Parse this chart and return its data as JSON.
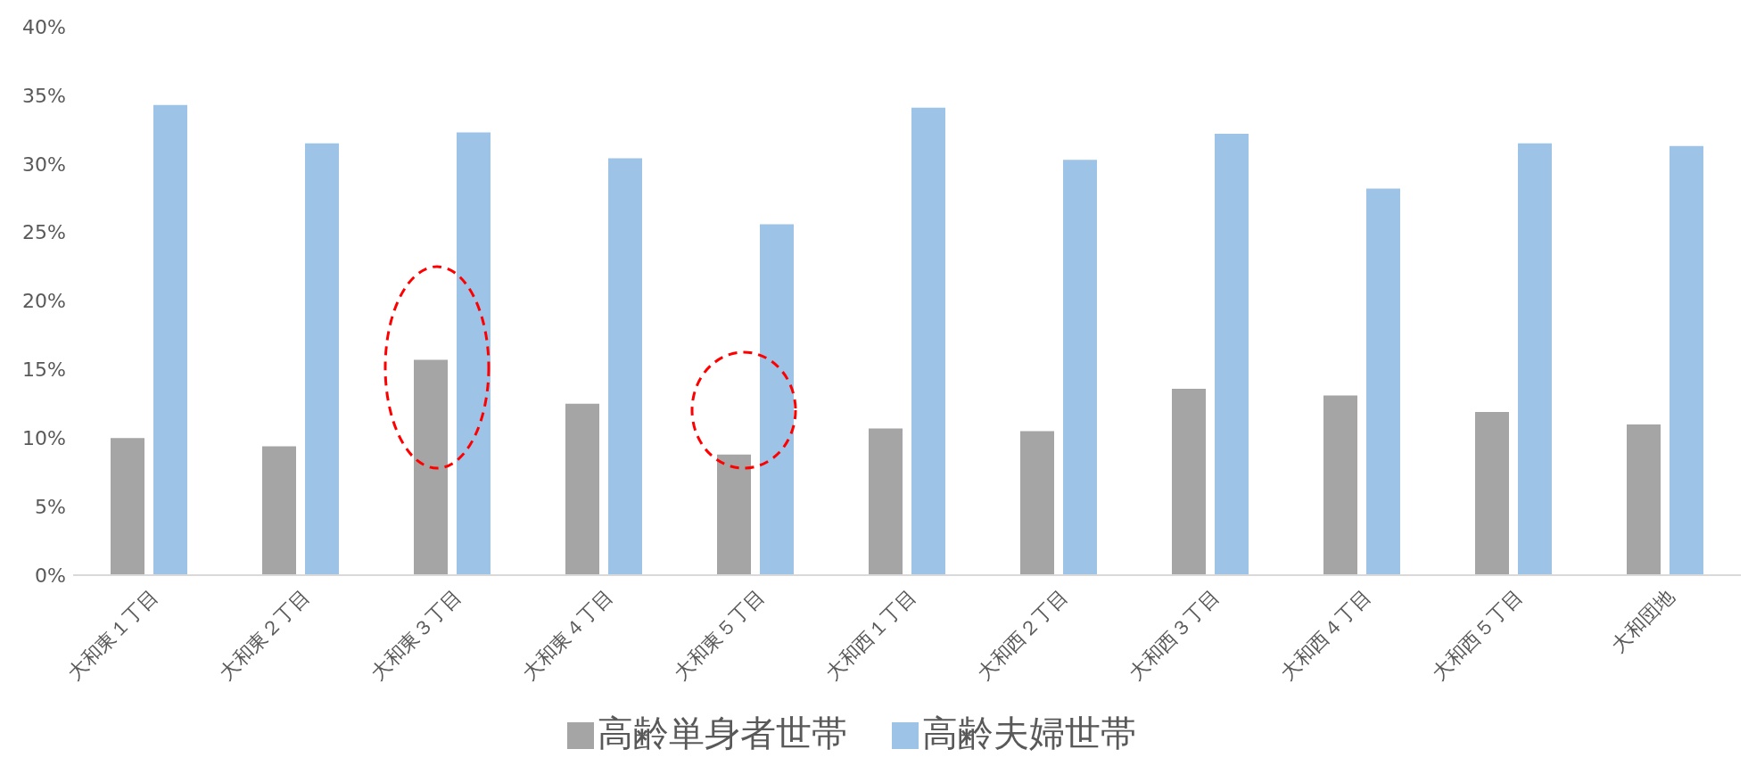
{
  "chart_data": {
    "type": "bar",
    "categories": [
      "大和東１丁目",
      "大和東２丁目",
      "大和東３丁目",
      "大和東４丁目",
      "大和東５丁目",
      "大和西１丁目",
      "大和西２丁目",
      "大和西３丁目",
      "大和西４丁目",
      "大和西５丁目",
      "大和団地"
    ],
    "series": [
      {
        "name": "高齢単身者世帯",
        "color": "#a5a5a5",
        "values": [
          10.0,
          9.4,
          15.7,
          12.5,
          8.8,
          10.7,
          10.5,
          13.6,
          13.1,
          11.9,
          11.0
        ]
      },
      {
        "name": "高齢夫婦世帯",
        "color": "#9dc3e6",
        "values": [
          34.3,
          31.5,
          32.3,
          30.4,
          25.6,
          34.1,
          30.3,
          32.2,
          28.2,
          31.5,
          31.3
        ]
      }
    ],
    "ylim": [
      0,
      40
    ],
    "yticks": [
      {
        "value": 0,
        "label": "0%"
      },
      {
        "value": 5,
        "label": "5%"
      },
      {
        "value": 10,
        "label": "10%"
      },
      {
        "value": 15,
        "label": "15%"
      },
      {
        "value": 20,
        "label": "20%"
      },
      {
        "value": 25,
        "label": "25%"
      },
      {
        "value": 30,
        "label": "30%"
      },
      {
        "value": 35,
        "label": "35%"
      },
      {
        "value": 40,
        "label": "40%"
      }
    ],
    "grid": false,
    "legend": "bottom"
  }
}
